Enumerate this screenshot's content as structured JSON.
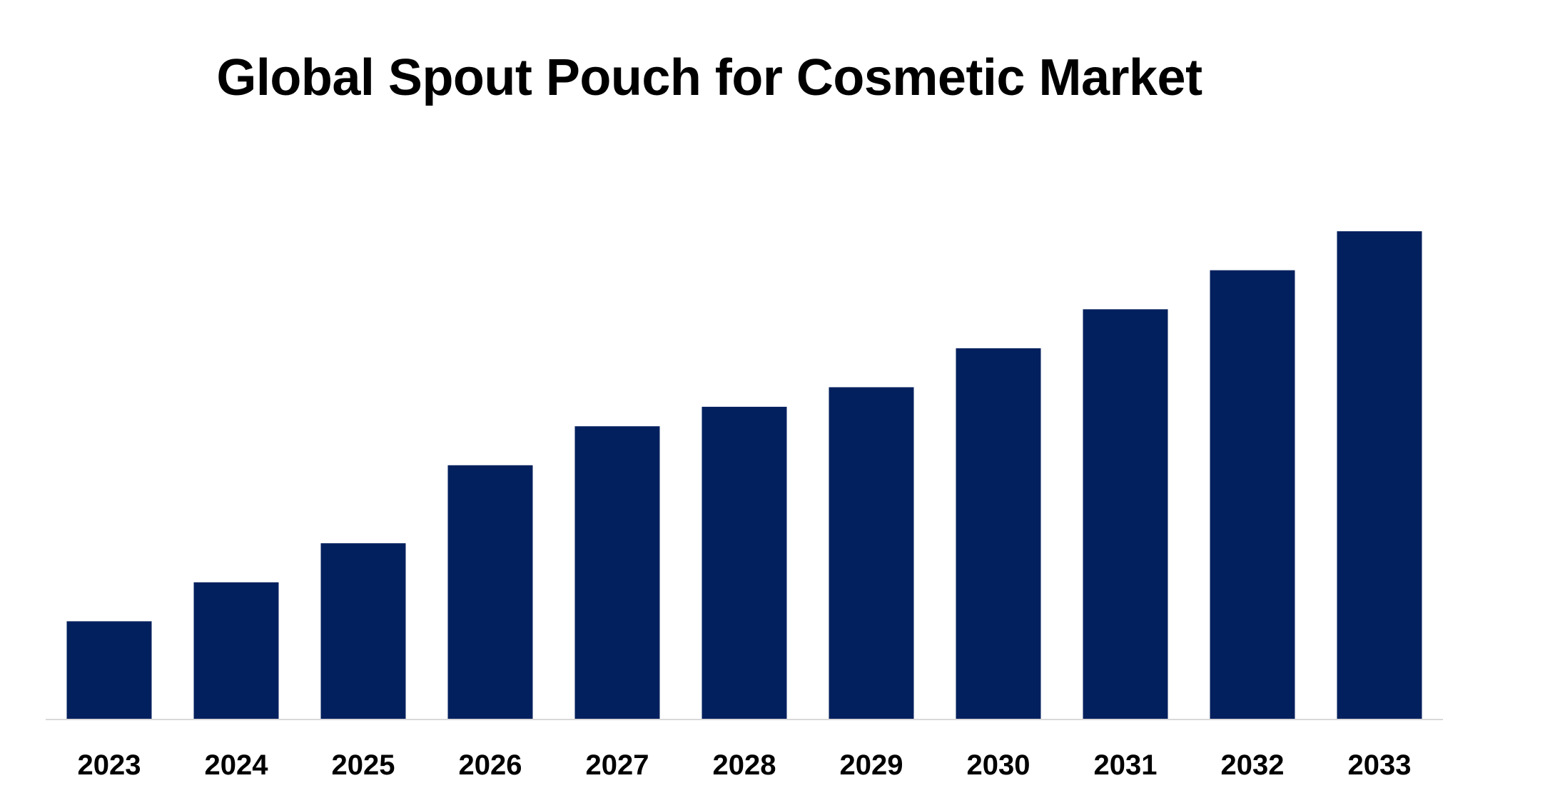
{
  "chart_data": {
    "type": "bar",
    "title": "Global Spout Pouch for Cosmetic Market",
    "xlabel": "",
    "ylabel": "",
    "categories": [
      "2023",
      "2024",
      "2025",
      "2026",
      "2027",
      "2028",
      "2029",
      "2030",
      "2031",
      "2032",
      "2033"
    ],
    "values": [
      2.5,
      3.5,
      4.5,
      6.5,
      7.5,
      8.0,
      8.5,
      9.5,
      10.5,
      11.5,
      12.5
    ],
    "ylim": [
      0,
      14
    ],
    "grid": false,
    "legend": "none",
    "bar_color": "#03205E",
    "axis_color": "#D9D9D9"
  }
}
